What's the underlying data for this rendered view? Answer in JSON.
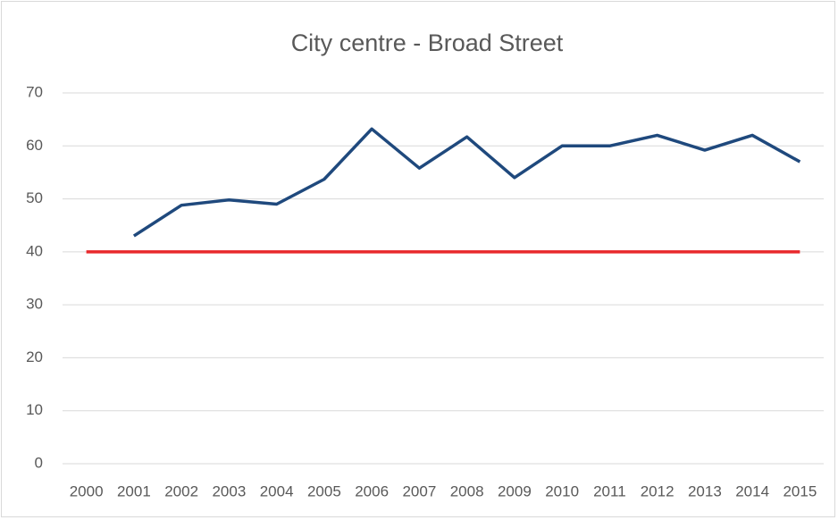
{
  "chart_data": {
    "type": "line",
    "title": "City centre - Broad Street",
    "categories": [
      "2000",
      "2001",
      "2002",
      "2003",
      "2004",
      "2005",
      "2006",
      "2007",
      "2008",
      "2009",
      "2010",
      "2011",
      "2012",
      "2013",
      "2014",
      "2015"
    ],
    "series": [
      {
        "color": "#1f497d",
        "values": [
          null,
          43,
          48.8,
          49.8,
          49,
          53.7,
          63.2,
          55.8,
          61.7,
          54,
          60,
          60,
          62,
          59.2,
          62,
          57
        ]
      },
      {
        "color": "#e8282b",
        "values": [
          40,
          40,
          40,
          40,
          40,
          40,
          40,
          40,
          40,
          40,
          40,
          40,
          40,
          40,
          40,
          40
        ]
      }
    ],
    "ylim": [
      0,
      70
    ],
    "yticks": [
      0,
      10,
      20,
      30,
      40,
      50,
      60,
      70
    ],
    "grid": true
  }
}
